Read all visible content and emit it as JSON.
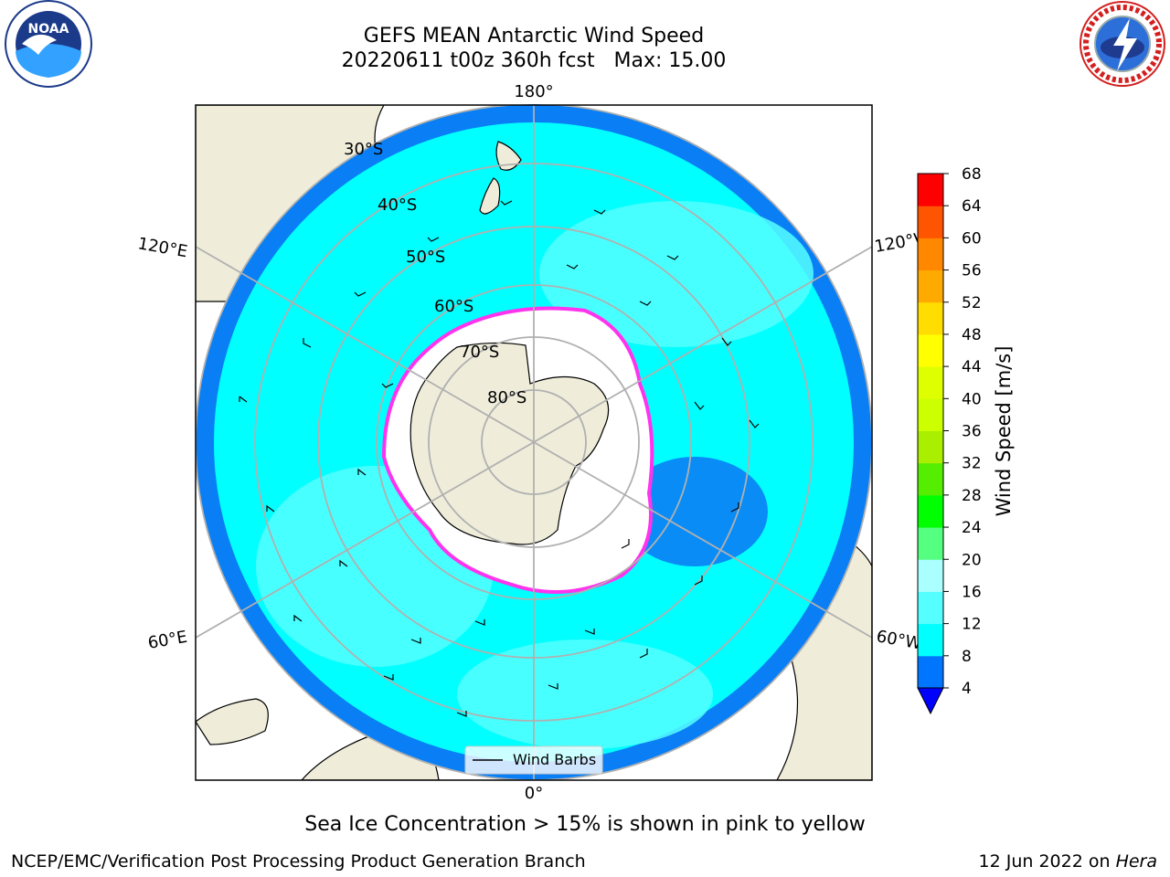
{
  "title": {
    "line1": "GEFS MEAN Antarctic Wind Speed",
    "line2": "20220611 t00z 360h fcst   Max: 15.00"
  },
  "map": {
    "projection": "south-polar-stereographic",
    "colors": {
      "ocean_light": "#00ffff",
      "ocean_mid": "#55ffff",
      "ocean_dark": "#0a7ff5",
      "land": "#efedda",
      "sea_ice_edge": "#ff33ee",
      "grid": "#b0b0b0"
    },
    "lon_labels": {
      "top": "180°",
      "bottom": "0°",
      "upper_left": "120°E",
      "upper_right": "120°W",
      "lower_left": "60°E",
      "lower_right": "60°W"
    },
    "lat_labels": [
      "30°S",
      "40°S",
      "50°S",
      "60°S",
      "70°S",
      "80°S"
    ],
    "legend_label": "Wind Barbs"
  },
  "colorbar": {
    "label": "Wind Speed [m/s]",
    "ticks": [
      "68",
      "64",
      "60",
      "56",
      "52",
      "48",
      "44",
      "40",
      "36",
      "32",
      "28",
      "24",
      "20",
      "16",
      "12",
      "8",
      "4"
    ],
    "colors_bottom_to_top": [
      "#0076ff",
      "#00ffff",
      "#55ffff",
      "#aaffff",
      "#55ff80",
      "#00ff00",
      "#55ee00",
      "#aaee00",
      "#ccff00",
      "#ddff00",
      "#ffff00",
      "#ffdd00",
      "#ffaa00",
      "#ff8800",
      "#ff5500",
      "#ff0000"
    ],
    "underflow_color": "#0000ff"
  },
  "caption": "Sea Ice Concentration > 15% is shown in pink to yellow",
  "footer": {
    "left": "NCEP/EMC/Verification Post Processing Product Generation Branch",
    "right_prefix": "12 Jun 2022 on ",
    "right_host": "Hera"
  },
  "logos": {
    "noaa_text": "NOAA",
    "nws_text": "NATIONAL WEATHER SERVICE"
  }
}
